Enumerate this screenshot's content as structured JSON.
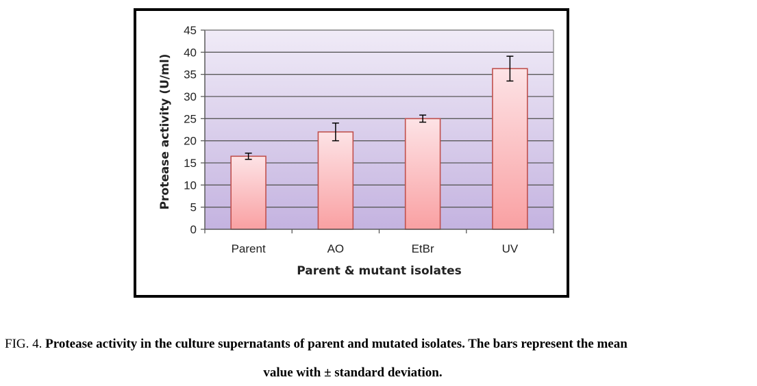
{
  "chart_data": {
    "type": "bar",
    "categories": [
      "Parent",
      "AO",
      "EtBr",
      "UV"
    ],
    "values": [
      16.5,
      22,
      25,
      36.3
    ],
    "errors": [
      0.7,
      2.0,
      0.8,
      2.8
    ],
    "xlabel": "Parent & mutant isolates",
    "ylabel": "Protease activity (U/ml)",
    "ylim": [
      0,
      45
    ],
    "yticks": [
      0,
      5,
      10,
      15,
      20,
      25,
      30,
      35,
      40,
      45
    ],
    "grid": true,
    "colors": {
      "bar_top": "#fde3e6",
      "bar_bottom": "#f9a0a2",
      "bar_border": "#c0504d",
      "plot_bg_top": "#f0ebf7",
      "plot_bg_bottom": "#c4b3e0",
      "grid": "#595959",
      "errorbar": "#000000"
    }
  },
  "caption": {
    "fig_label": "FIG. 4.",
    "text_line1": "Protease activity in the culture supernatants of parent and mutated isolates. The bars represent the mean",
    "text_line2": "value with ± standard deviation."
  }
}
